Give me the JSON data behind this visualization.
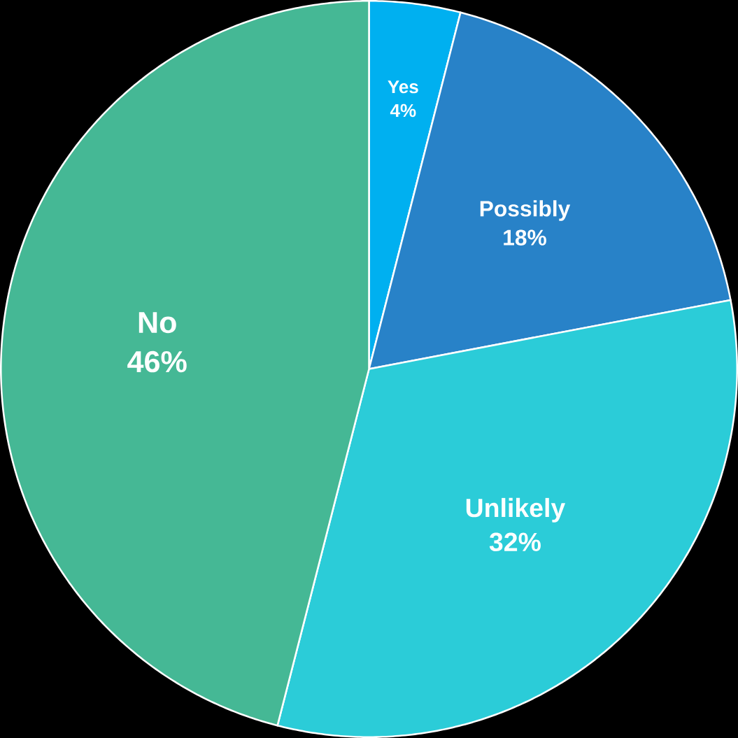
{
  "chart_data": {
    "type": "pie",
    "categories": [
      "Yes",
      "Possibly",
      "Unlikely",
      "No"
    ],
    "values": [
      4,
      18,
      32,
      46
    ],
    "value_labels": [
      "4%",
      "18%",
      "32%",
      "46%"
    ],
    "colors": [
      "#00b0f0",
      "#2882c8",
      "#2bccd8",
      "#45b895"
    ]
  }
}
